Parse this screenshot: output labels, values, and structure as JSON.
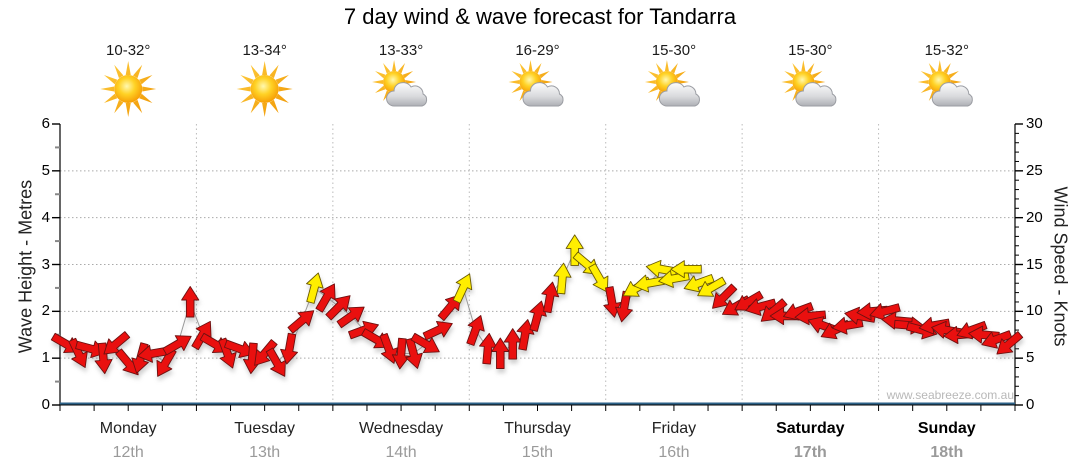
{
  "title": "7 day wind & wave forecast for Tandarra",
  "watermark": "www.seabreeze.com.au",
  "left_axis": {
    "label": "Wave Height - Metres",
    "ticks": [
      0,
      1,
      2,
      3,
      4,
      5,
      6
    ],
    "range": [
      0,
      6
    ]
  },
  "right_axis": {
    "label": "Wind Speed - Knots",
    "ticks": [
      0,
      5,
      10,
      15,
      20,
      25,
      30
    ],
    "range": [
      0,
      30
    ]
  },
  "days": [
    {
      "name": "Monday",
      "date": "12th",
      "temp": "10-32°",
      "icon": "sunny-icon",
      "bold": false
    },
    {
      "name": "Tuesday",
      "date": "13th",
      "temp": "13-34°",
      "icon": "sunny-icon",
      "bold": false
    },
    {
      "name": "Wednesday",
      "date": "14th",
      "temp": "13-33°",
      "icon": "partly-cloudy-icon",
      "bold": false
    },
    {
      "name": "Thursday",
      "date": "15th",
      "temp": "16-29°",
      "icon": "partly-cloudy-icon",
      "bold": false
    },
    {
      "name": "Friday",
      "date": "16th",
      "temp": "15-30°",
      "icon": "partly-cloudy-icon",
      "bold": false
    },
    {
      "name": "Saturday",
      "date": "17th",
      "temp": "15-30°",
      "icon": "partly-cloudy-icon",
      "bold": true
    },
    {
      "name": "Sunday",
      "date": "18th",
      "temp": "15-32°",
      "icon": "partly-cloudy-icon",
      "bold": true
    }
  ],
  "chart_data": {
    "type": "line",
    "title": "7 day wind & wave forecast for Tandarra",
    "xlabel": "",
    "ylabel_left": "Wave Height - Metres",
    "ylabel_right": "Wind Speed - Knots",
    "ylim_left": [
      0,
      6
    ],
    "ylim_right": [
      0,
      30
    ],
    "grid": "dotted horizontal at 5,10,15,20,25 knots; dotted vertical at day boundaries",
    "categories": [
      "Monday 12th",
      "Tuesday 13th",
      "Wednesday 14th",
      "Thursday 15th",
      "Friday 16th",
      "Saturday 17th",
      "Sunday 18th"
    ],
    "wave_height_series": {
      "name": "Wave Height (m)",
      "value": 0,
      "note": "flat line at 0 metres all week",
      "color": "#2d6288"
    },
    "wind_series": {
      "name": "Wind Speed (knots), arrow glyphs show wind direction",
      "points_per_day": 11,
      "knots": [
        6.5,
        5.5,
        6,
        5,
        6.5,
        4.5,
        5,
        5.5,
        4.5,
        6.5,
        11,
        7.5,
        6.5,
        5.5,
        6,
        5,
        5.5,
        4.5,
        6,
        9,
        12.5,
        11.5,
        10.5,
        9.5,
        8,
        7,
        6,
        5.5,
        5.5,
        6.5,
        8,
        10.5,
        12.5,
        8,
        6,
        5.5,
        6.5,
        7.5,
        9.5,
        11.5,
        13.5,
        16.5,
        15,
        13.5,
        11,
        10.5,
        12.5,
        13,
        14.5,
        13.5,
        14.5,
        13,
        12.5,
        11.5,
        10.5,
        11,
        10.5,
        10,
        9.5,
        10,
        9.5,
        8.5,
        8,
        8.5,
        9.5,
        10,
        10,
        9,
        8.5,
        8,
        8.5,
        8,
        7.5,
        8,
        7.5,
        7,
        6.5
      ],
      "dir_deg": [
        30,
        65,
        15,
        85,
        140,
        50,
        105,
        170,
        120,
        -30,
        -90,
        -60,
        30,
        70,
        20,
        95,
        130,
        60,
        100,
        -40,
        -75,
        -60,
        -45,
        -35,
        -20,
        30,
        70,
        95,
        75,
        30,
        -25,
        -50,
        -65,
        -70,
        -85,
        -90,
        -90,
        -80,
        -75,
        -80,
        -85,
        -90,
        40,
        60,
        80,
        100,
        150,
        170,
        190,
        170,
        180,
        160,
        150,
        135,
        150,
        150,
        165,
        140,
        180,
        160,
        175,
        200,
        155,
        170,
        190,
        175,
        165,
        185,
        5,
        15,
        170,
        190,
        175,
        160,
        185,
        160,
        140
      ],
      "color_rule": "yellow if knots >= 12 else red",
      "colors": {
        "red": "#e9100f",
        "yellow": "#ffee00",
        "red_outline": "#6e1010",
        "yellow_outline": "#6b5a00",
        "trend_line": "#999999"
      }
    }
  },
  "layout_colors": {
    "axis": "#000000",
    "x_axis_wave_line": "#2d6288",
    "gridline": "#aaaaaa",
    "day_boundary_line": "#bbbbbb",
    "date_text": "#9a9a9a"
  }
}
